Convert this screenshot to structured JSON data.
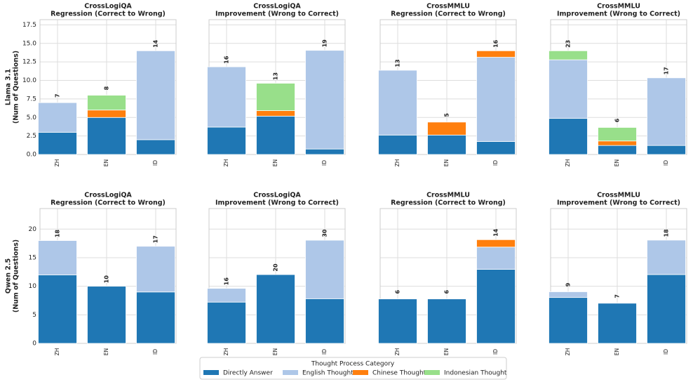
{
  "chart_data": {
    "type": "bar",
    "stacked": true,
    "grid": true,
    "legend_title": "Thought Process Category",
    "series": [
      {
        "name": "Directly Answer",
        "color": "#1f77b4"
      },
      {
        "name": "English Thought",
        "color": "#aec7e8"
      },
      {
        "name": "Chinese Thought",
        "color": "#ff7f0e"
      },
      {
        "name": "Indonesian Thought",
        "color": "#98df8a"
      }
    ],
    "panels": [
      {
        "title": "CrossLogiQA",
        "subtitle": "Regression (Correct to Wrong)",
        "ylabel": [
          "Llama 3.1",
          "(Num of Questions)"
        ],
        "categories": [
          "ZH",
          "EN",
          "ID"
        ],
        "values": [
          [
            3,
            4,
            0,
            0
          ],
          [
            5,
            0,
            1,
            2
          ],
          [
            2,
            12,
            0,
            0
          ]
        ],
        "totals": [
          7,
          8,
          14
        ],
        "ylim": [
          0,
          18.2
        ],
        "yticks": [
          {
            "value": 0,
            "label": "0.0"
          },
          2.5,
          {
            "value": 5,
            "label": "5.0"
          },
          7.5,
          {
            "value": 10,
            "label": "10.0"
          },
          12.5,
          {
            "value": 15,
            "label": "15.0"
          },
          17.5
        ]
      },
      {
        "title": "CrossLogiQA",
        "subtitle": "Improvement (Wrong to Correct)",
        "categories": [
          "ZH",
          "EN",
          "ID"
        ],
        "values": [
          [
            5,
            11,
            0,
            0
          ],
          [
            7,
            0,
            1,
            5
          ],
          [
            1,
            18,
            0,
            0
          ]
        ],
        "totals": [
          16,
          13,
          19
        ],
        "ylim": [
          0,
          24.6
        ]
      },
      {
        "title": "CrossMMLU",
        "subtitle": "Regression (Correct to Wrong)",
        "categories": [
          "ZH",
          "EN",
          "ID"
        ],
        "values": [
          [
            3,
            10,
            0,
            0
          ],
          [
            3,
            0,
            2,
            0
          ],
          [
            2,
            13,
            1,
            0
          ]
        ],
        "totals": [
          13,
          5,
          16
        ],
        "ylim": [
          0,
          20.8
        ]
      },
      {
        "title": "CrossMMLU",
        "subtitle": "Improvement (Wrong to Correct)",
        "categories": [
          "ZH",
          "EN",
          "ID"
        ],
        "values": [
          [
            8,
            13,
            0,
            2
          ],
          [
            2,
            0,
            1,
            3
          ],
          [
            2,
            15,
            0,
            0
          ]
        ],
        "totals": [
          23,
          6,
          17
        ],
        "ylim": [
          0,
          29.9
        ]
      },
      {
        "title": "CrossLogiQA",
        "subtitle": "Regression (Correct to Wrong)",
        "ylabel": [
          "Qwen 2.5",
          "(Num of Questions)"
        ],
        "categories": [
          "ZH",
          "EN",
          "ID"
        ],
        "values": [
          [
            12,
            6,
            0,
            0
          ],
          [
            10,
            0,
            0,
            0
          ],
          [
            9,
            8,
            0,
            0
          ]
        ],
        "totals": [
          18,
          10,
          17
        ],
        "ylim": [
          0,
          23.6
        ],
        "yticks": [
          0,
          5,
          10,
          15,
          20
        ]
      },
      {
        "title": "CrossLogiQA",
        "subtitle": "Improvement (Wrong to Correct)",
        "categories": [
          "ZH",
          "EN",
          "ID"
        ],
        "values": [
          [
            12,
            4,
            0,
            0
          ],
          [
            20,
            0,
            0,
            0
          ],
          [
            13,
            17,
            0,
            0
          ]
        ],
        "totals": [
          16,
          20,
          30
        ],
        "ylim": [
          0,
          39.2
        ]
      },
      {
        "title": "CrossMMLU",
        "subtitle": "Regression (Correct to Wrong)",
        "categories": [
          "ZH",
          "EN",
          "ID"
        ],
        "values": [
          [
            6,
            0,
            0,
            0
          ],
          [
            6,
            0,
            0,
            0
          ],
          [
            10,
            3,
            1,
            0
          ]
        ],
        "totals": [
          6,
          6,
          14
        ],
        "ylim": [
          0,
          18.2
        ]
      },
      {
        "title": "CrossMMLU",
        "subtitle": "Improvement (Wrong to Correct)",
        "categories": [
          "ZH",
          "EN",
          "ID"
        ],
        "values": [
          [
            8,
            1,
            0,
            0
          ],
          [
            7,
            0,
            0,
            0
          ],
          [
            12,
            6,
            0,
            0
          ]
        ],
        "totals": [
          9,
          7,
          18
        ],
        "ylim": [
          0,
          23.5
        ]
      }
    ]
  }
}
